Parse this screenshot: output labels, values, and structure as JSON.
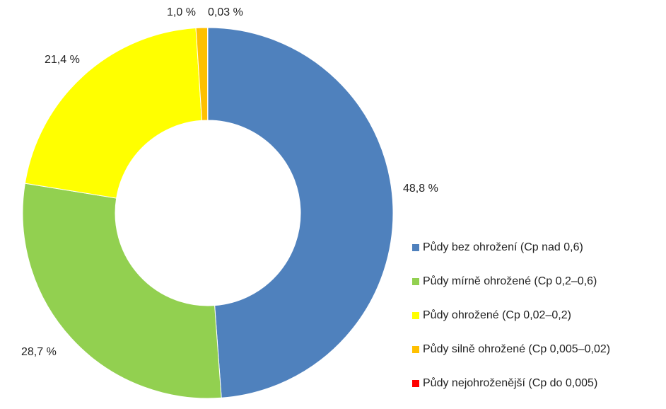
{
  "chart_data": {
    "type": "pie",
    "subtype": "donut",
    "categories": [
      "Půdy bez ohrožení (Cp nad 0,6)",
      "Půdy mírně ohrožené (Cp 0,2–0,6)",
      "Půdy ohrožené (Cp 0,02–0,2)",
      "Půdy silně ohrožené (Cp 0,005–0,02)",
      "Půdy nejohroženější (Cp do 0,005)"
    ],
    "values": [
      48.8,
      28.7,
      21.4,
      1.0,
      0.03
    ],
    "value_labels": [
      "48,8 %",
      "28,7 %",
      "21,4 %",
      "1,0 %",
      "0,03 %"
    ],
    "colors": [
      "#4f81bd",
      "#92d050",
      "#ffff00",
      "#ffc000",
      "#ff0000"
    ],
    "legend_position": "right",
    "title": "",
    "xlabel": "",
    "ylabel": ""
  }
}
